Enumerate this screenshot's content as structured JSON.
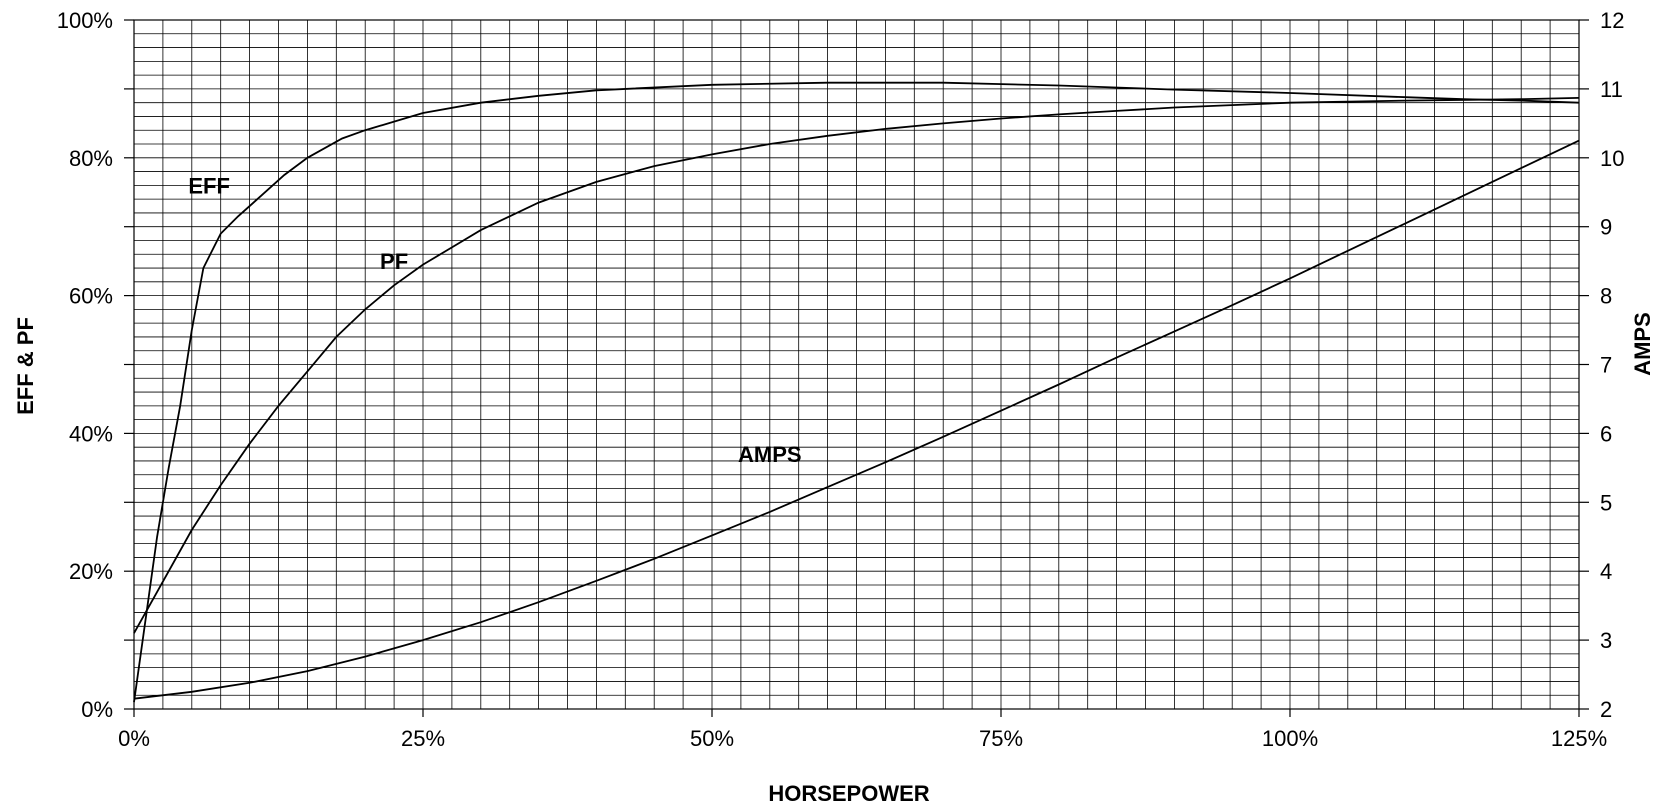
{
  "chart_data": {
    "type": "line",
    "xlabel": "HORSEPOWER",
    "ylabel_left": "EFF & PF",
    "ylabel_right": "AMPS",
    "xlim": [
      0,
      125
    ],
    "ylim_left": [
      0,
      100
    ],
    "ylim_right": [
      2,
      12
    ],
    "grid": true,
    "x_ticks": [
      0,
      25,
      50,
      75,
      100,
      125
    ],
    "x_tick_labels": [
      "0%",
      "25%",
      "50%",
      "75%",
      "100%",
      "125%"
    ],
    "y_left_ticks": [
      0,
      20,
      40,
      60,
      80,
      100
    ],
    "y_left_tick_labels": [
      "0%",
      "20%",
      "40%",
      "60%",
      "80%",
      "100%"
    ],
    "y_right_ticks": [
      2,
      3,
      4,
      5,
      6,
      7,
      8,
      9,
      10,
      11,
      12
    ],
    "y_right_tick_labels": [
      "2",
      "3",
      "4",
      "5",
      "6",
      "7",
      "8",
      "9",
      "10",
      "11",
      "12"
    ],
    "series": [
      {
        "name": "EFF",
        "axis": "left",
        "x": [
          0,
          1,
          2,
          3,
          4,
          5,
          6,
          7.5,
          9,
          11,
          13,
          15,
          18,
          20,
          23,
          25,
          30,
          35,
          40,
          50,
          60,
          70,
          80,
          90,
          100,
          110,
          115,
          120,
          125
        ],
        "y": [
          1,
          13,
          25,
          35,
          44,
          55,
          64,
          69,
          71.5,
          74.5,
          77.5,
          80,
          82.8,
          84,
          85.5,
          86.5,
          88,
          89,
          89.8,
          90.6,
          90.9,
          90.9,
          90.5,
          89.9,
          89.4,
          88.8,
          88.5,
          88.3,
          88
        ]
      },
      {
        "name": "PF",
        "axis": "left",
        "x": [
          0,
          2,
          5,
          7.5,
          10,
          12.5,
          15,
          17.5,
          20,
          22.5,
          25,
          27.5,
          30,
          35,
          40,
          45,
          50,
          55,
          60,
          65,
          70,
          75,
          80,
          85,
          90,
          100,
          110,
          120,
          125
        ],
        "y": [
          11,
          17,
          26,
          32.5,
          38.5,
          44,
          49,
          54,
          58,
          61.5,
          64.5,
          67,
          69.5,
          73.5,
          76.5,
          78.8,
          80.5,
          82,
          83.2,
          84.2,
          85,
          85.7,
          86.3,
          86.8,
          87.3,
          88,
          88.3,
          88.5,
          88.7
        ]
      },
      {
        "name": "AMPS",
        "axis": "right",
        "x": [
          0,
          5,
          10,
          15,
          20,
          25,
          30,
          35,
          40,
          45,
          50,
          55,
          60,
          65,
          70,
          75,
          80,
          85,
          90,
          95,
          100,
          105,
          110,
          115,
          120,
          125
        ],
        "y": [
          2.15,
          2.25,
          2.38,
          2.55,
          2.76,
          3.0,
          3.26,
          3.55,
          3.86,
          4.18,
          4.52,
          4.86,
          5.22,
          5.58,
          5.95,
          6.33,
          6.71,
          7.1,
          7.48,
          7.86,
          8.25,
          8.65,
          9.05,
          9.45,
          9.85,
          10.25
        ]
      }
    ],
    "annotations": [
      {
        "text": "EFF",
        "x": 6.5,
        "y": 76
      },
      {
        "text": "PF",
        "x": 22.5,
        "y": 65
      },
      {
        "text": "AMPS",
        "x": 55,
        "y": 37
      }
    ]
  }
}
